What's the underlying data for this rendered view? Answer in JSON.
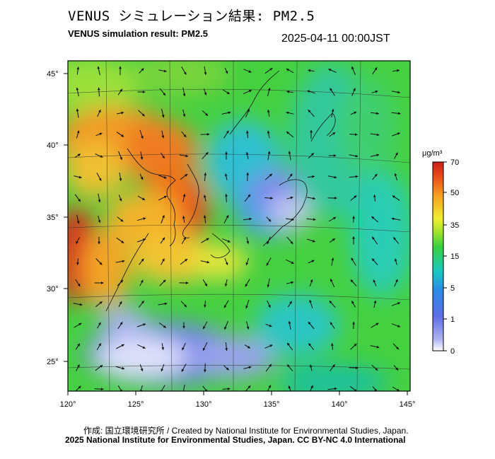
{
  "header": {
    "title_jp": "VENUS シミュレーション結果: PM2.5",
    "title_en": "VENUS simulation result: PM2.5",
    "timestamp": "2025-04-11 00:00JST"
  },
  "map": {
    "lon_ticks": [
      "120°",
      "125°",
      "130°",
      "135°",
      "140°",
      "145°"
    ],
    "lat_ticks": [
      "45°",
      "40°",
      "35°",
      "30°",
      "25°"
    ],
    "field": "PM2.5 concentration",
    "overlay": "wind-vectors"
  },
  "colorbar": {
    "unit": "μg/m³",
    "ticks": [
      "70",
      "50",
      "35",
      "15",
      "5",
      "1",
      "0"
    ],
    "colors": [
      "#c81e1e",
      "#f07a10",
      "#ffd21e",
      "#f0f030",
      "#4cd14c",
      "#18c8a6",
      "#2a78e6",
      "#6e72e8",
      "#ffffff"
    ]
  },
  "footer": {
    "credit": "作成: 国立環境研究所 / Created by National Institute for Environmental Studies, Japan.",
    "license": "2025 National Institute for Environmental Studies, Japan. CC BY-NC 4.0 International"
  }
}
